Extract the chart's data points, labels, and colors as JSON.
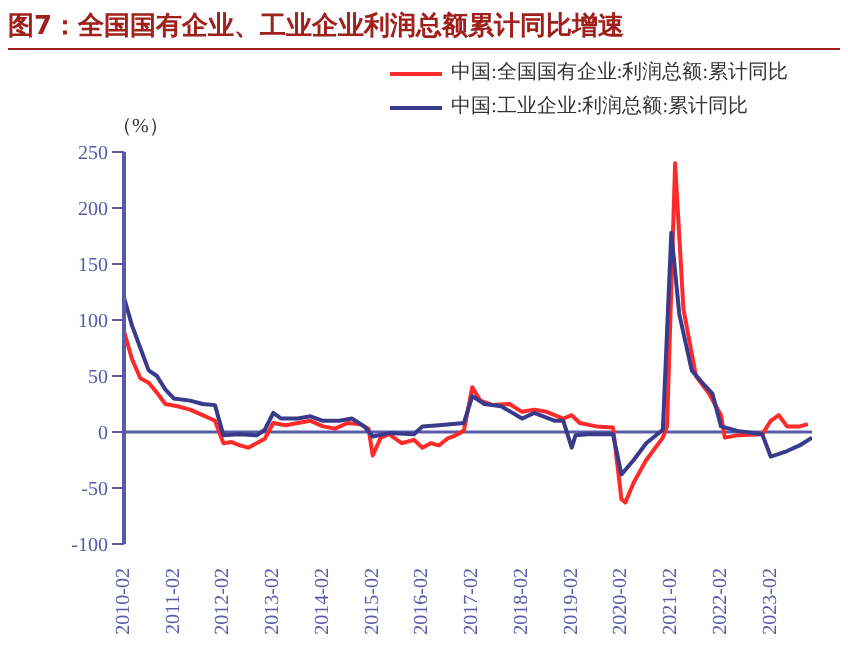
{
  "chart_data": {
    "type": "line",
    "title": "图7：全国国有企业、工业企业利润总额累计同比增速",
    "ylabel": "（%）",
    "legend": "top right",
    "grid": false,
    "marker": "none",
    "line_style": "solid",
    "xlim": [
      "2010-02",
      "2023-12"
    ],
    "xticks": [
      "2010-02",
      "2011-02",
      "2012-02",
      "2013-02",
      "2014-02",
      "2015-02",
      "2016-02",
      "2017-02",
      "2018-02",
      "2019-02",
      "2020-02",
      "2021-02",
      "2022-02",
      "2023-02"
    ],
    "ylim": [
      -100,
      250
    ],
    "yticks": [
      -100,
      -50,
      0,
      50,
      100,
      150,
      200,
      250
    ],
    "ref_lines": [
      {
        "axis": "y",
        "value": 0,
        "color": "#5a5aa8"
      }
    ],
    "series": [
      {
        "name": "中国:全国国有企业:利润总额:累计同比",
        "color": "#ff2a2a",
        "x": [
          "2010-02",
          "2010-04",
          "2010-06",
          "2010-08",
          "2010-10",
          "2010-12",
          "2011-03",
          "2011-06",
          "2011-09",
          "2011-12",
          "2012-02",
          "2012-04",
          "2012-06",
          "2012-08",
          "2012-10",
          "2012-12",
          "2013-02",
          "2013-05",
          "2013-08",
          "2013-11",
          "2014-02",
          "2014-05",
          "2014-08",
          "2014-11",
          "2015-01",
          "2015-02",
          "2015-04",
          "2015-06",
          "2015-09",
          "2015-12",
          "2016-02",
          "2016-04",
          "2016-06",
          "2016-08",
          "2016-10",
          "2016-12",
          "2017-02",
          "2017-04",
          "2017-07",
          "2017-11",
          "2018-02",
          "2018-05",
          "2018-08",
          "2018-12",
          "2019-02",
          "2019-04",
          "2019-08",
          "2019-12",
          "2020-02",
          "2020-03",
          "2020-05",
          "2020-08",
          "2020-12",
          "2021-01",
          "2021-03",
          "2021-05",
          "2021-08",
          "2021-11",
          "2022-02",
          "2022-03",
          "2022-06",
          "2022-12",
          "2023-02",
          "2023-04",
          "2023-06",
          "2023-09",
          "2023-11"
        ],
        "values": [
          90,
          65,
          48,
          44,
          35,
          25,
          23,
          20,
          15,
          10,
          -10,
          -9,
          -12,
          -14,
          -10,
          -6,
          8,
          6,
          8,
          10,
          5,
          3,
          8,
          7,
          3,
          -21,
          -5,
          -2,
          -10,
          -7,
          -14,
          -10,
          -12,
          -6,
          -3,
          1,
          40,
          28,
          24,
          25,
          18,
          20,
          18,
          12,
          15,
          8,
          5,
          4,
          -60,
          -63,
          -45,
          -25,
          -5,
          5,
          240,
          110,
          50,
          35,
          15,
          -5,
          -3,
          -2,
          10,
          15,
          5,
          5,
          7
        ]
      },
      {
        "name": "中国:工业企业:利润总额:累计同比",
        "color": "#3a3a8c",
        "x": [
          "2010-02",
          "2010-04",
          "2010-06",
          "2010-08",
          "2010-10",
          "2010-12",
          "2011-02",
          "2011-06",
          "2011-09",
          "2011-12",
          "2012-02",
          "2012-06",
          "2012-10",
          "2012-12",
          "2013-02",
          "2013-04",
          "2013-08",
          "2013-11",
          "2014-02",
          "2014-06",
          "2014-09",
          "2014-12",
          "2015-02",
          "2015-06",
          "2015-12",
          "2016-02",
          "2016-06",
          "2016-12",
          "2017-02",
          "2017-05",
          "2017-09",
          "2018-02",
          "2018-05",
          "2018-10",
          "2018-12",
          "2019-02",
          "2019-03",
          "2019-06",
          "2019-12",
          "2020-02",
          "2020-05",
          "2020-08",
          "2020-12",
          "2021-02",
          "2021-04",
          "2021-07",
          "2021-10",
          "2021-12",
          "2022-02",
          "2022-06",
          "2022-12",
          "2023-02",
          "2023-06",
          "2023-09",
          "2023-12"
        ],
        "values": [
          120,
          95,
          75,
          55,
          50,
          38,
          30,
          28,
          25,
          24,
          -3,
          -2,
          -3,
          2,
          17,
          12,
          12,
          14,
          10,
          10,
          12,
          5,
          -4,
          -1,
          -2,
          5,
          6,
          8,
          32,
          25,
          23,
          12,
          17,
          10,
          10,
          -14,
          -3,
          -2,
          -2,
          -38,
          -25,
          -10,
          2,
          178,
          105,
          55,
          42,
          34,
          5,
          1,
          -2,
          -22,
          -17,
          -12,
          -5
        ]
      }
    ]
  }
}
